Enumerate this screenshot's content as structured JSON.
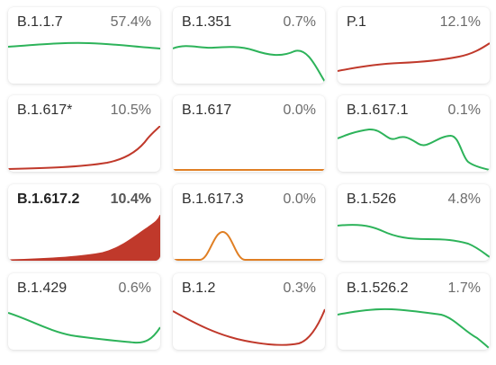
{
  "colors": {
    "green": "#2db35a",
    "red": "#c0392b",
    "orange": "#e07f24"
  },
  "cards": [
    {
      "name": "B.1.1.7",
      "percent": "57.4%",
      "color": "green",
      "selected": false
    },
    {
      "name": "B.1.351",
      "percent": "0.7%",
      "color": "green",
      "selected": false
    },
    {
      "name": "P.1",
      "percent": "12.1%",
      "color": "red",
      "selected": false
    },
    {
      "name": "B.1.617*",
      "percent": "10.5%",
      "color": "red",
      "selected": false
    },
    {
      "name": "B.1.617",
      "percent": "0.0%",
      "color": "orange",
      "selected": false
    },
    {
      "name": "B.1.617.1",
      "percent": "0.1%",
      "color": "green",
      "selected": false
    },
    {
      "name": "B.1.617.2",
      "percent": "10.4%",
      "color": "red",
      "selected": true
    },
    {
      "name": "B.1.617.3",
      "percent": "0.0%",
      "color": "orange",
      "selected": false
    },
    {
      "name": "B.1.526",
      "percent": "4.8%",
      "color": "green",
      "selected": false
    },
    {
      "name": "B.1.429",
      "percent": "0.6%",
      "color": "green",
      "selected": false
    },
    {
      "name": "B.1.2",
      "percent": "0.3%",
      "color": "red",
      "selected": false
    },
    {
      "name": "B.1.526.2",
      "percent": "1.7%",
      "color": "green",
      "selected": false
    }
  ]
}
